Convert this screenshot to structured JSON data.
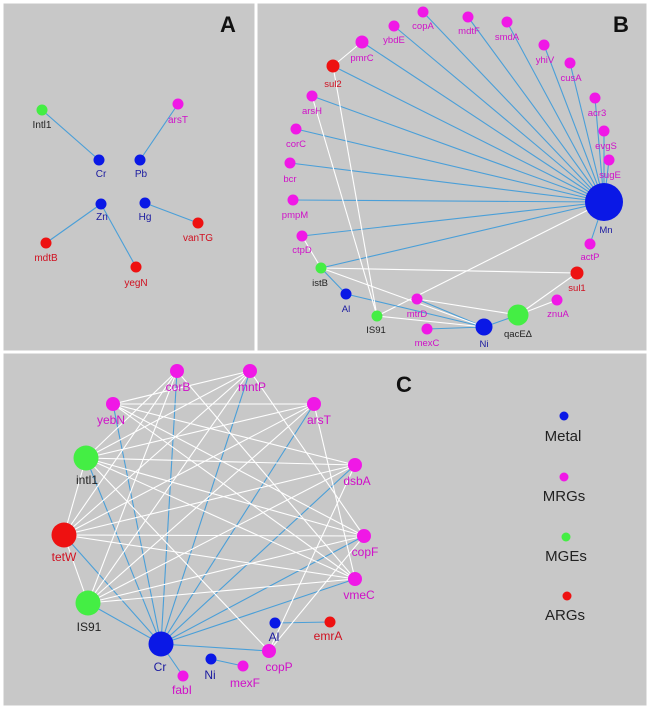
{
  "colors": {
    "Metal": "#0a18e6",
    "MRGs": "#f018e6",
    "MGEs": "#44ee44",
    "ARGs": "#ee1111",
    "blue_edge": "#4a9fd8",
    "white_edge": "#ffffff",
    "background": "#c8c8c8"
  },
  "label_colors": {
    "Metal": "#1a1aa0",
    "MRGs": "#d010c8",
    "MGEs": "#222222",
    "ARGs": "#d01020"
  },
  "panels": [
    {
      "letter": "A",
      "nodes": [
        {
          "id": "Intl1",
          "type": "MGEs"
        },
        {
          "id": "Cr",
          "type": "Metal"
        },
        {
          "id": "arsT",
          "type": "MRGs"
        },
        {
          "id": "Pb",
          "type": "Metal"
        },
        {
          "id": "Zn",
          "type": "Metal"
        },
        {
          "id": "mdtB",
          "type": "ARGs"
        },
        {
          "id": "yegN",
          "type": "ARGs"
        },
        {
          "id": "Hg",
          "type": "Metal"
        },
        {
          "id": "vanTG",
          "type": "ARGs"
        }
      ],
      "edges": [
        {
          "source": "Intl1",
          "target": "Cr",
          "color": "blue"
        },
        {
          "source": "arsT",
          "target": "Pb",
          "color": "blue"
        },
        {
          "source": "Zn",
          "target": "mdtB",
          "color": "blue"
        },
        {
          "source": "Zn",
          "target": "yegN",
          "color": "blue"
        },
        {
          "source": "Hg",
          "target": "vanTG",
          "color": "blue"
        }
      ]
    },
    {
      "letter": "B",
      "nodes": [
        {
          "id": "copA",
          "type": "MRGs"
        },
        {
          "id": "mdtF",
          "type": "MRGs"
        },
        {
          "id": "ybdE",
          "type": "MRGs"
        },
        {
          "id": "smdA",
          "type": "MRGs"
        },
        {
          "id": "pmrC",
          "type": "MRGs"
        },
        {
          "id": "yhiV",
          "type": "MRGs"
        },
        {
          "id": "sul2",
          "type": "ARGs"
        },
        {
          "id": "cusA",
          "type": "MRGs"
        },
        {
          "id": "arsH",
          "type": "MRGs"
        },
        {
          "id": "acr3",
          "type": "MRGs"
        },
        {
          "id": "corC",
          "type": "MRGs"
        },
        {
          "id": "evgS",
          "type": "MRGs"
        },
        {
          "id": "bcr",
          "type": "MRGs"
        },
        {
          "id": "sugE",
          "type": "MRGs"
        },
        {
          "id": "Mn",
          "type": "Metal"
        },
        {
          "id": "pmpM",
          "type": "MRGs"
        },
        {
          "id": "ctpD",
          "type": "MRGs"
        },
        {
          "id": "actP",
          "type": "MRGs"
        },
        {
          "id": "istB",
          "type": "MGEs"
        },
        {
          "id": "sul1",
          "type": "ARGs"
        },
        {
          "id": "Al",
          "type": "Metal"
        },
        {
          "id": "znuA",
          "type": "MRGs"
        },
        {
          "id": "IS91",
          "type": "MGEs"
        },
        {
          "id": "mtrD",
          "type": "MRGs"
        },
        {
          "id": "qacEΔ",
          "type": "MGEs"
        },
        {
          "id": "mexC",
          "type": "MRGs"
        },
        {
          "id": "Ni",
          "type": "Metal"
        }
      ],
      "edges": [
        {
          "source": "Mn",
          "target": "copA",
          "color": "blue"
        },
        {
          "source": "Mn",
          "target": "mdtF",
          "color": "blue"
        },
        {
          "source": "Mn",
          "target": "ybdE",
          "color": "blue"
        },
        {
          "source": "Mn",
          "target": "smdA",
          "color": "blue"
        },
        {
          "source": "Mn",
          "target": "pmrC",
          "color": "blue"
        },
        {
          "source": "Mn",
          "target": "yhiV",
          "color": "blue"
        },
        {
          "source": "Mn",
          "target": "sul2",
          "color": "blue"
        },
        {
          "source": "Mn",
          "target": "cusA",
          "color": "blue"
        },
        {
          "source": "Mn",
          "target": "arsH",
          "color": "blue"
        },
        {
          "source": "Mn",
          "target": "acr3",
          "color": "blue"
        },
        {
          "source": "Mn",
          "target": "corC",
          "color": "blue"
        },
        {
          "source": "Mn",
          "target": "evgS",
          "color": "blue"
        },
        {
          "source": "Mn",
          "target": "bcr",
          "color": "blue"
        },
        {
          "source": "Mn",
          "target": "sugE",
          "color": "blue"
        },
        {
          "source": "Mn",
          "target": "pmpM",
          "color": "blue"
        },
        {
          "source": "Mn",
          "target": "ctpD",
          "color": "blue"
        },
        {
          "source": "Mn",
          "target": "actP",
          "color": "blue"
        },
        {
          "source": "Mn",
          "target": "istB",
          "color": "blue"
        },
        {
          "source": "Mn",
          "target": "IS91",
          "color": "white"
        },
        {
          "source": "Ni",
          "target": "qacEΔ",
          "color": "blue"
        },
        {
          "source": "Ni",
          "target": "mtrD",
          "color": "blue"
        },
        {
          "source": "Ni",
          "target": "mexC",
          "color": "blue"
        },
        {
          "source": "Ni",
          "target": "Al",
          "color": "blue"
        },
        {
          "source": "Ni",
          "target": "istB",
          "color": "white"
        },
        {
          "source": "Ni",
          "target": "IS91",
          "color": "white"
        },
        {
          "source": "Al",
          "target": "istB",
          "color": "blue"
        },
        {
          "source": "IS91",
          "target": "sul2",
          "color": "white"
        },
        {
          "source": "IS91",
          "target": "arsH",
          "color": "white"
        },
        {
          "source": "mtrD",
          "target": "qacEΔ",
          "color": "white"
        },
        {
          "source": "qacEΔ",
          "target": "sul1",
          "color": "white"
        },
        {
          "source": "qacEΔ",
          "target": "znuA",
          "color": "white"
        },
        {
          "source": "sul1",
          "target": "istB",
          "color": "white"
        },
        {
          "source": "ctpD",
          "target": "istB",
          "color": "white"
        },
        {
          "source": "pmrC",
          "target": "sul2",
          "color": "white"
        }
      ]
    },
    {
      "letter": "C",
      "nodes": [
        {
          "id": "corB",
          "type": "MRGs"
        },
        {
          "id": "mntP",
          "type": "MRGs"
        },
        {
          "id": "yebN",
          "type": "MRGs"
        },
        {
          "id": "arsT",
          "type": "MRGs"
        },
        {
          "id": "intl1",
          "type": "MGEs"
        },
        {
          "id": "dsbA",
          "type": "MRGs"
        },
        {
          "id": "tetW",
          "type": "ARGs"
        },
        {
          "id": "copF",
          "type": "MRGs"
        },
        {
          "id": "vmeC",
          "type": "MRGs"
        },
        {
          "id": "IS91",
          "type": "MGEs"
        },
        {
          "id": "Al",
          "type": "Metal"
        },
        {
          "id": "emrA",
          "type": "ARGs"
        },
        {
          "id": "Cr",
          "type": "Metal"
        },
        {
          "id": "Ni",
          "type": "Metal"
        },
        {
          "id": "copP",
          "type": "MRGs"
        },
        {
          "id": "mexF",
          "type": "MRGs"
        },
        {
          "id": "fabI",
          "type": "MRGs"
        }
      ],
      "edges": [
        {
          "source": "Cr",
          "target": "corB",
          "color": "blue"
        },
        {
          "source": "Cr",
          "target": "mntP",
          "color": "blue"
        },
        {
          "source": "Cr",
          "target": "yebN",
          "color": "blue"
        },
        {
          "source": "Cr",
          "target": "arsT",
          "color": "blue"
        },
        {
          "source": "Cr",
          "target": "intl1",
          "color": "blue"
        },
        {
          "source": "Cr",
          "target": "dsbA",
          "color": "blue"
        },
        {
          "source": "Cr",
          "target": "tetW",
          "color": "blue"
        },
        {
          "source": "Cr",
          "target": "copF",
          "color": "blue"
        },
        {
          "source": "Cr",
          "target": "vmeC",
          "color": "blue"
        },
        {
          "source": "Cr",
          "target": "IS91",
          "color": "blue"
        },
        {
          "source": "Cr",
          "target": "copP",
          "color": "blue"
        },
        {
          "source": "Cr",
          "target": "fabI",
          "color": "blue"
        },
        {
          "source": "Al",
          "target": "emrA",
          "color": "blue"
        },
        {
          "source": "Ni",
          "target": "mexF",
          "color": "blue"
        },
        {
          "source": "yebN",
          "target": "mntP",
          "color": "white"
        },
        {
          "source": "yebN",
          "target": "arsT",
          "color": "white"
        },
        {
          "source": "yebN",
          "target": "dsbA",
          "color": "white"
        },
        {
          "source": "yebN",
          "target": "copF",
          "color": "white"
        },
        {
          "source": "yebN",
          "target": "vmeC",
          "color": "white"
        },
        {
          "source": "intl1",
          "target": "corB",
          "color": "white"
        },
        {
          "source": "intl1",
          "target": "mntP",
          "color": "white"
        },
        {
          "source": "intl1",
          "target": "arsT",
          "color": "white"
        },
        {
          "source": "intl1",
          "target": "dsbA",
          "color": "white"
        },
        {
          "source": "intl1",
          "target": "copF",
          "color": "white"
        },
        {
          "source": "intl1",
          "target": "vmeC",
          "color": "white"
        },
        {
          "source": "intl1",
          "target": "copP",
          "color": "white"
        },
        {
          "source": "tetW",
          "target": "corB",
          "color": "white"
        },
        {
          "source": "tetW",
          "target": "mntP",
          "color": "white"
        },
        {
          "source": "tetW",
          "target": "arsT",
          "color": "white"
        },
        {
          "source": "tetW",
          "target": "dsbA",
          "color": "white"
        },
        {
          "source": "tetW",
          "target": "copF",
          "color": "white"
        },
        {
          "source": "tetW",
          "target": "vmeC",
          "color": "white"
        },
        {
          "source": "IS91",
          "target": "corB",
          "color": "white"
        },
        {
          "source": "IS91",
          "target": "mntP",
          "color": "white"
        },
        {
          "source": "IS91",
          "target": "arsT",
          "color": "white"
        },
        {
          "source": "IS91",
          "target": "dsbA",
          "color": "white"
        },
        {
          "source": "IS91",
          "target": "copF",
          "color": "white"
        },
        {
          "source": "IS91",
          "target": "vmeC",
          "color": "white"
        },
        {
          "source": "corB",
          "target": "vmeC",
          "color": "white"
        },
        {
          "source": "mntP",
          "target": "copF",
          "color": "white"
        },
        {
          "source": "arsT",
          "target": "vmeC",
          "color": "white"
        },
        {
          "source": "dsbA",
          "target": "copP",
          "color": "white"
        },
        {
          "source": "copF",
          "target": "copP",
          "color": "white"
        },
        {
          "source": "intl1",
          "target": "tetW",
          "color": "white"
        },
        {
          "source": "tetW",
          "target": "IS91",
          "color": "white"
        }
      ]
    }
  ],
  "legend": [
    {
      "label": "Metal",
      "type": "Metal"
    },
    {
      "label": "MRGs",
      "type": "MRGs"
    },
    {
      "label": "MGEs",
      "type": "MGEs"
    },
    {
      "label": "ARGs",
      "type": "ARGs"
    }
  ]
}
